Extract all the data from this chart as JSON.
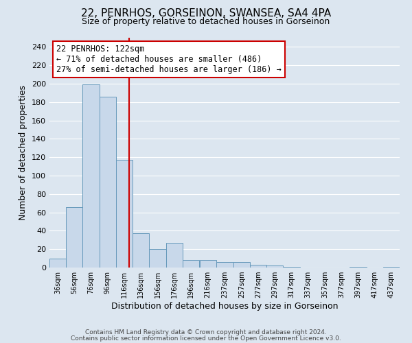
{
  "title": "22, PENRHOS, GORSEINON, SWANSEA, SA4 4PA",
  "subtitle": "Size of property relative to detached houses in Gorseinon",
  "xlabel": "Distribution of detached houses by size in Gorseinon",
  "ylabel": "Number of detached properties",
  "bar_left_edges": [
    26,
    46,
    66,
    86,
    106,
    126,
    146,
    166,
    186,
    207,
    227,
    247,
    267,
    287,
    307,
    327,
    347,
    367,
    387,
    407,
    427
  ],
  "bar_heights": [
    10,
    66,
    199,
    186,
    117,
    37,
    20,
    27,
    8,
    8,
    6,
    6,
    3,
    2,
    1,
    0,
    0,
    0,
    1,
    0,
    1
  ],
  "bin_width": 20,
  "bar_color": "#c8d8ea",
  "bar_edge_color": "#6699bb",
  "vline_x": 122,
  "vline_color": "#cc0000",
  "annotation_box_text": "22 PENRHOS: 122sqm\n← 71% of detached houses are smaller (486)\n27% of semi-detached houses are larger (186) →",
  "annotation_box_color": "#cc0000",
  "annotation_bg": "white",
  "xlim": [
    26,
    447
  ],
  "ylim": [
    0,
    250
  ],
  "yticks": [
    0,
    20,
    40,
    60,
    80,
    100,
    120,
    140,
    160,
    180,
    200,
    220,
    240
  ],
  "xtick_labels": [
    "36sqm",
    "56sqm",
    "76sqm",
    "96sqm",
    "116sqm",
    "136sqm",
    "156sqm",
    "176sqm",
    "196sqm",
    "216sqm",
    "237sqm",
    "257sqm",
    "277sqm",
    "297sqm",
    "317sqm",
    "337sqm",
    "357sqm",
    "377sqm",
    "397sqm",
    "417sqm",
    "437sqm"
  ],
  "xtick_positions": [
    36,
    56,
    76,
    96,
    116,
    136,
    156,
    176,
    196,
    216,
    237,
    257,
    277,
    297,
    317,
    337,
    357,
    377,
    397,
    417,
    437
  ],
  "footer_line1": "Contains HM Land Registry data © Crown copyright and database right 2024.",
  "footer_line2": "Contains public sector information licensed under the Open Government Licence v3.0.",
  "background_color": "#dce6f0",
  "plot_bg_color": "#dce6f0",
  "grid_color": "white"
}
